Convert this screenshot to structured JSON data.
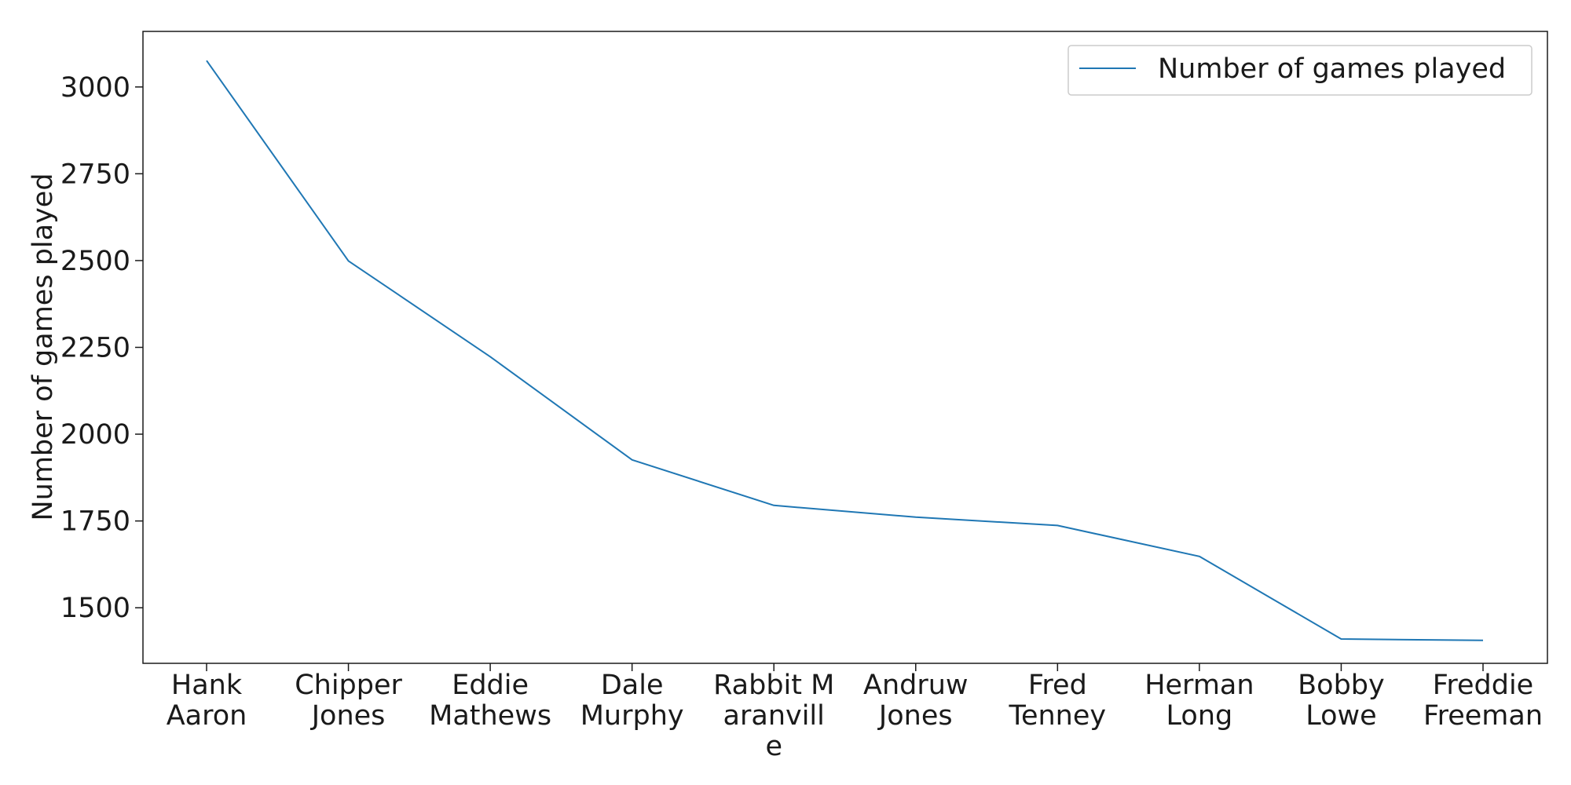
{
  "chart_data": {
    "type": "line",
    "title": "",
    "xlabel": "",
    "ylabel": "Number of games played",
    "categories": [
      [
        "Hank",
        "Aaron"
      ],
      [
        "Chipper",
        "Jones"
      ],
      [
        "Eddie",
        "Mathews"
      ],
      [
        "Dale",
        "Murphy"
      ],
      [
        "Rabbit M",
        "aranvill",
        "e"
      ],
      [
        "Andruw",
        "Jones"
      ],
      [
        "Fred",
        "Tenney"
      ],
      [
        "Herman",
        "Long"
      ],
      [
        "Bobby",
        "Lowe"
      ],
      [
        "Freddie",
        "Freeman"
      ]
    ],
    "series": [
      {
        "name": "Number of games played",
        "color": "#1f77b4",
        "values": [
          3076,
          2499,
          2223,
          1926,
          1795,
          1761,
          1737,
          1648,
          1410,
          1406
        ]
      }
    ],
    "ylim": [
      1340,
      3160
    ],
    "yticks": [
      1500,
      1750,
      2000,
      2250,
      2500,
      2750,
      3000
    ],
    "grid": false,
    "legend_position": "top-right"
  }
}
